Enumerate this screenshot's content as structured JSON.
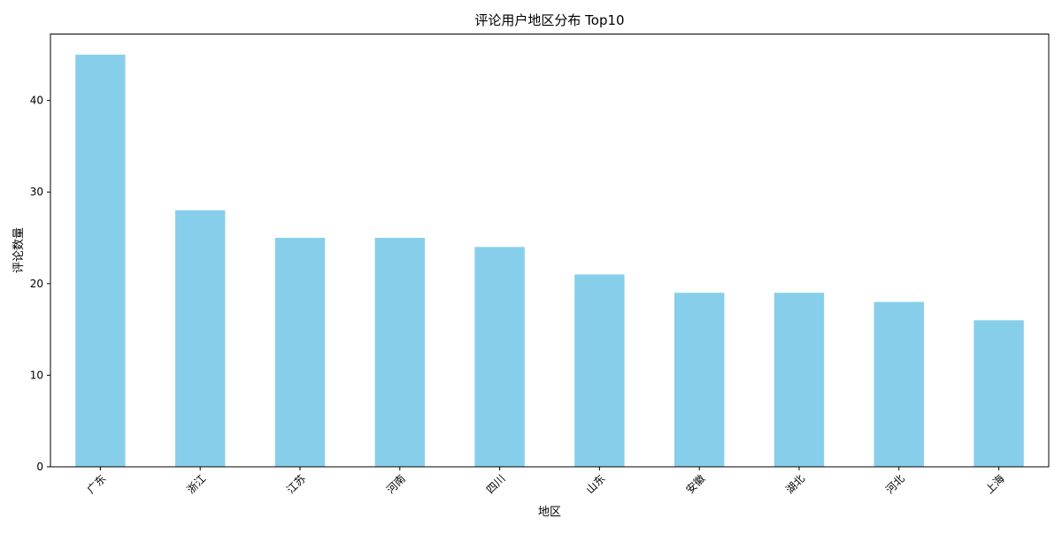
{
  "chart_data": {
    "type": "bar",
    "title": "评论用户地区分布 Top10",
    "xlabel": "地区",
    "ylabel": "评论数量",
    "categories": [
      "广东",
      "浙江",
      "江苏",
      "河南",
      "四川",
      "山东",
      "安徽",
      "湖北",
      "河北",
      "上海"
    ],
    "values": [
      45,
      28,
      25,
      25,
      24,
      21,
      19,
      19,
      18,
      16
    ],
    "ylim": [
      0,
      47.25
    ],
    "yticks": [
      0,
      10,
      20,
      30,
      40
    ],
    "grid": false,
    "legend": "none",
    "bar_color": "#87CEEB",
    "x_tick_rotation_deg": 45
  }
}
